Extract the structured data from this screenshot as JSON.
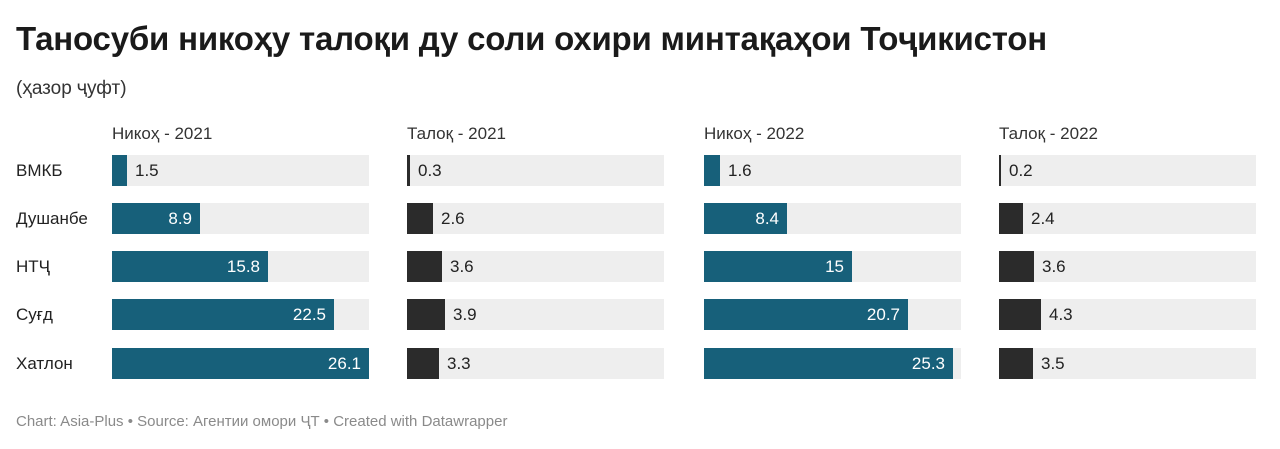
{
  "title": "Таносуби никоҳу талоқи ду соли охири минтақаҳои Тоҷикистон",
  "subtitle": "(ҳазор ҷуфт)",
  "footer": "Chart: Asia-Plus • Source: Агентии омори ҶТ • Created with Datawrapper",
  "chart_data": {
    "type": "bar",
    "orientation": "horizontal",
    "layout": "small-multiples",
    "title": "Таносуби никоҳу талоқи ду соли охири минтақаҳои Тоҷикистон",
    "subtitle": "(ҳазор ҷуфт)",
    "categories": [
      "ВМКБ",
      "Душанбе",
      "НТҶ",
      "Суғд",
      "Хатлон"
    ],
    "xlim": [
      0,
      26.1
    ],
    "series": [
      {
        "name": "Никоҳ - 2021",
        "color": "#17607a",
        "values": [
          1.5,
          8.9,
          15.8,
          22.5,
          26.1
        ]
      },
      {
        "name": "Талоқ - 2021",
        "color": "#2b2b2b",
        "values": [
          0.3,
          2.6,
          3.6,
          3.9,
          3.3
        ]
      },
      {
        "name": "Никоҳ - 2022",
        "color": "#17607a",
        "values": [
          1.6,
          8.4,
          15,
          20.7,
          25.3
        ]
      },
      {
        "name": "Талоқ - 2022",
        "color": "#2b2b2b",
        "values": [
          0.2,
          2.4,
          3.6,
          4.3,
          3.5
        ]
      }
    ],
    "value_labels": [
      [
        "1.5",
        "8.9",
        "15.8",
        "22.5",
        "26.1"
      ],
      [
        "0.3",
        "2.6",
        "3.6",
        "3.9",
        "3.3"
      ],
      [
        "1.6",
        "8.4",
        "15",
        "20.7",
        "25.3"
      ],
      [
        "0.2",
        "2.4",
        "3.6",
        "4.3",
        "3.5"
      ]
    ],
    "track_color": "#eeeeee"
  }
}
